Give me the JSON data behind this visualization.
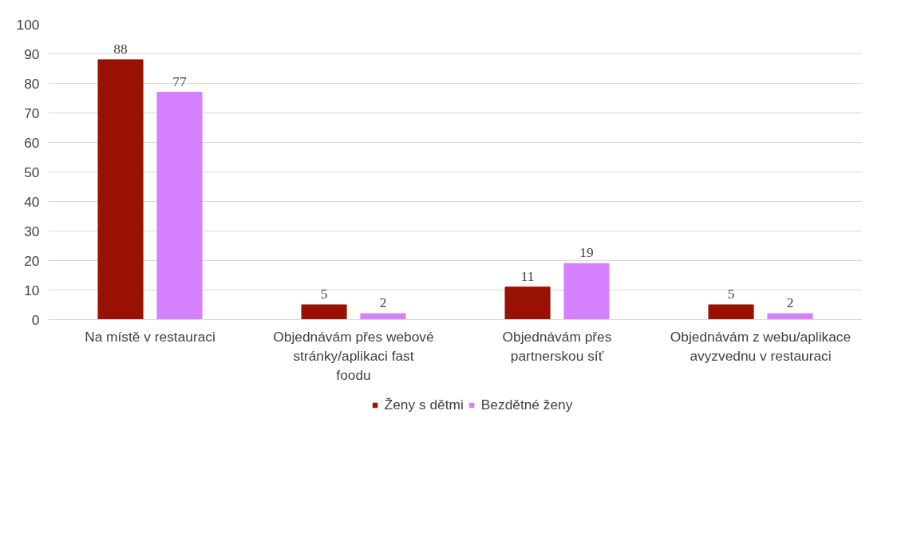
{
  "chart_data": {
    "type": "bar",
    "categories": [
      "Na místě v restauraci",
      "Objednávám přes webové stránky/aplikaci fast foodu",
      "Objednávám přes partnerskou síť",
      "Objednávám z webu/aplikace avyzvednu v restauraci"
    ],
    "series": [
      {
        "name": "Ženy s dětmi",
        "color": "#991100",
        "values": [
          88,
          5,
          11,
          5
        ]
      },
      {
        "name": "Bezdětné ženy",
        "color": "#d580ff",
        "values": [
          77,
          2,
          19,
          2
        ]
      }
    ],
    "ylim": [
      0,
      100
    ],
    "yticks": [
      0,
      10,
      20,
      30,
      40,
      50,
      60,
      70,
      80,
      90,
      100
    ],
    "grid": "y",
    "legend": "bottom",
    "data_labels": true
  }
}
